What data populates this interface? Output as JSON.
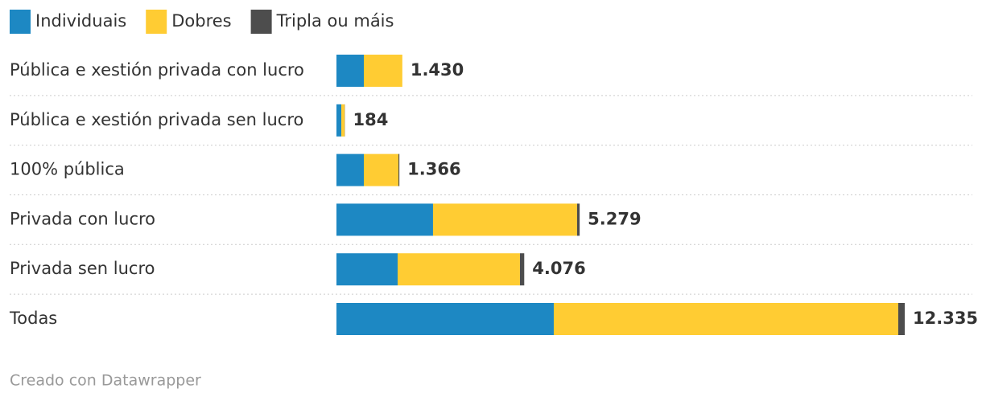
{
  "chart_data": {
    "type": "stacked-bar",
    "categories": [
      "Pública e xestión privada con lucro",
      "Pública e xestión privada sen lucro",
      "100% pública",
      "Privada con lucro",
      "Privada sen lucro",
      "Todas"
    ],
    "series": [
      {
        "name": "Individuais",
        "color": "#1d88c3",
        "values": [
          594,
          105,
          594,
          2096,
          1328,
          4717
        ]
      },
      {
        "name": "Dobres",
        "color": "#ffcc33",
        "values": [
          836,
          75,
          752,
          3127,
          2655,
          7477
        ]
      },
      {
        "name": "Tripla ou máis",
        "color": "#4d4d4d",
        "values": [
          0,
          4,
          20,
          56,
          93,
          141
        ]
      }
    ],
    "totals": {
      "values": [
        1430,
        184,
        1366,
        5279,
        4076,
        12335
      ],
      "value_labels": [
        "1.430",
        "184",
        "1.366",
        "5.279",
        "4.076",
        "12.335"
      ]
    },
    "legend": "top-left",
    "footer": "Creado con Datawrapper"
  }
}
